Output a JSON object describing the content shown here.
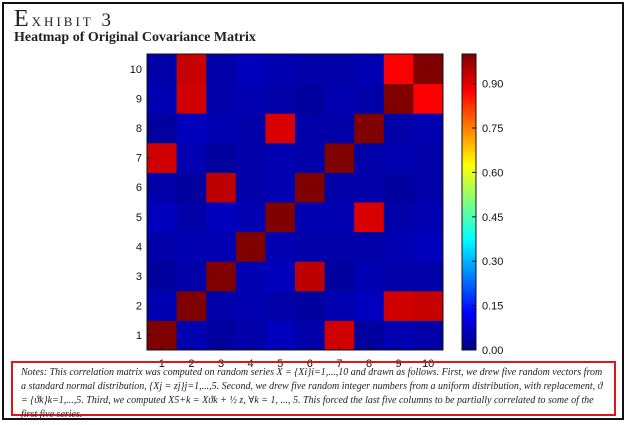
{
  "header": {
    "exhibit_cap": "E",
    "exhibit_rest": "xhibit 3",
    "subtitle": "Heatmap of Original Covariance Matrix"
  },
  "notes": "Notes: This correlation matrix was computed on random series X = {Xi}i=1,...,10 and drawn as follows. First, we drew five random vectors from a standard normal distribution, {Xj = zj}j=1,...,5. Second, we drew five random integer numbers from a uniform distribution, with replacement, ϑ = {ϑk}k=1,...,5. Third, we computed X5+k = Xϑk + ½ z, ∀k = 1, ..., 5. This forced the last five columns to be partially correlated to some of the first five series.",
  "colors": {
    "low": "#1e2a6e",
    "high": "#d40000",
    "notes_border": "#e0141c"
  },
  "chart_data": {
    "type": "heatmap",
    "x_categories": [
      "1",
      "2",
      "3",
      "4",
      "5",
      "6",
      "7",
      "8",
      "9",
      "10"
    ],
    "y_categories": [
      "1",
      "2",
      "3",
      "4",
      "5",
      "6",
      "7",
      "8",
      "9",
      "10"
    ],
    "colorbar_ticks": [
      "0.00",
      "0.15",
      "0.30",
      "0.45",
      "0.60",
      "0.75",
      "0.90"
    ],
    "colorbar_range": [
      0,
      1
    ],
    "colormap": "jet",
    "values": [
      [
        1.0,
        0.05,
        0.03,
        0.04,
        0.06,
        0.04,
        0.92,
        0.03,
        0.05,
        0.04
      ],
      [
        0.05,
        1.0,
        0.04,
        0.05,
        0.04,
        0.03,
        0.05,
        0.06,
        0.92,
        0.93
      ],
      [
        0.03,
        0.04,
        1.0,
        0.05,
        0.06,
        0.94,
        0.03,
        0.05,
        0.04,
        0.04
      ],
      [
        0.04,
        0.05,
        0.05,
        1.0,
        0.05,
        0.04,
        0.04,
        0.04,
        0.05,
        0.06
      ],
      [
        0.06,
        0.04,
        0.06,
        0.05,
        1.0,
        0.05,
        0.05,
        0.91,
        0.04,
        0.05
      ],
      [
        0.04,
        0.03,
        0.94,
        0.04,
        0.05,
        1.0,
        0.04,
        0.04,
        0.03,
        0.04
      ],
      [
        0.92,
        0.05,
        0.03,
        0.04,
        0.05,
        0.04,
        1.0,
        0.04,
        0.05,
        0.04
      ],
      [
        0.03,
        0.06,
        0.05,
        0.04,
        0.91,
        0.04,
        0.04,
        1.0,
        0.04,
        0.05
      ],
      [
        0.05,
        0.92,
        0.04,
        0.05,
        0.04,
        0.03,
        0.05,
        0.04,
        1.0,
        0.88
      ],
      [
        0.04,
        0.93,
        0.04,
        0.06,
        0.05,
        0.04,
        0.04,
        0.05,
        0.88,
        1.0
      ]
    ]
  }
}
